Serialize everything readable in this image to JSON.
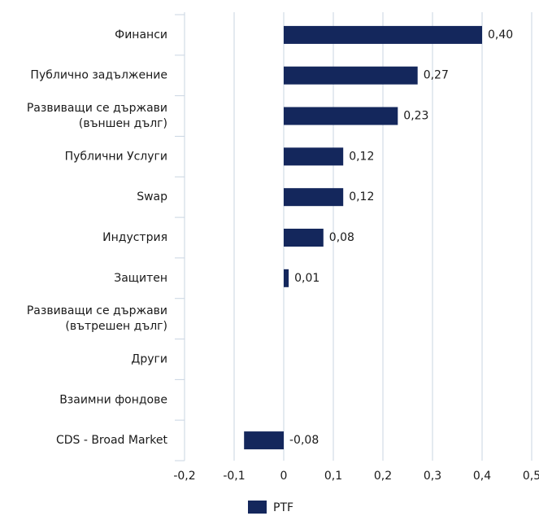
{
  "chart_data": {
    "type": "bar",
    "orientation": "horizontal",
    "categories": [
      "Финанси",
      "Публично задължение",
      "Развиващи се държави\n(външен дълг)",
      "Публични Услуги",
      "Swap",
      "Индустрия",
      "Защитен",
      "Развиващи се държави\n(вътрешен дълг)",
      "Други",
      "Взаимни фондове",
      "CDS - Broad Market"
    ],
    "series": [
      {
        "name": "PTF",
        "color": "#14275c",
        "values": [
          0.4,
          0.27,
          0.23,
          0.12,
          0.12,
          0.08,
          0.01,
          null,
          null,
          null,
          -0.08
        ],
        "value_labels": [
          "0,40",
          "0,27",
          "0,23",
          "0,12",
          "0,12",
          "0,08",
          "0,01",
          null,
          null,
          null,
          "-0,08"
        ]
      }
    ],
    "xlim": [
      -0.2,
      0.5
    ],
    "xticks": [
      {
        "value": -0.2,
        "label": "-0,2"
      },
      {
        "value": -0.1,
        "label": "-0,1"
      },
      0,
      {
        "value": 0.1,
        "label": "0,1"
      },
      {
        "value": 0.2,
        "label": "0,2"
      },
      {
        "value": 0.3,
        "label": "0,3"
      },
      {
        "value": 0.4,
        "label": "0,4"
      },
      {
        "value": 0.5,
        "label": "0,5"
      }
    ],
    "grid": true,
    "legend": "bottom"
  }
}
